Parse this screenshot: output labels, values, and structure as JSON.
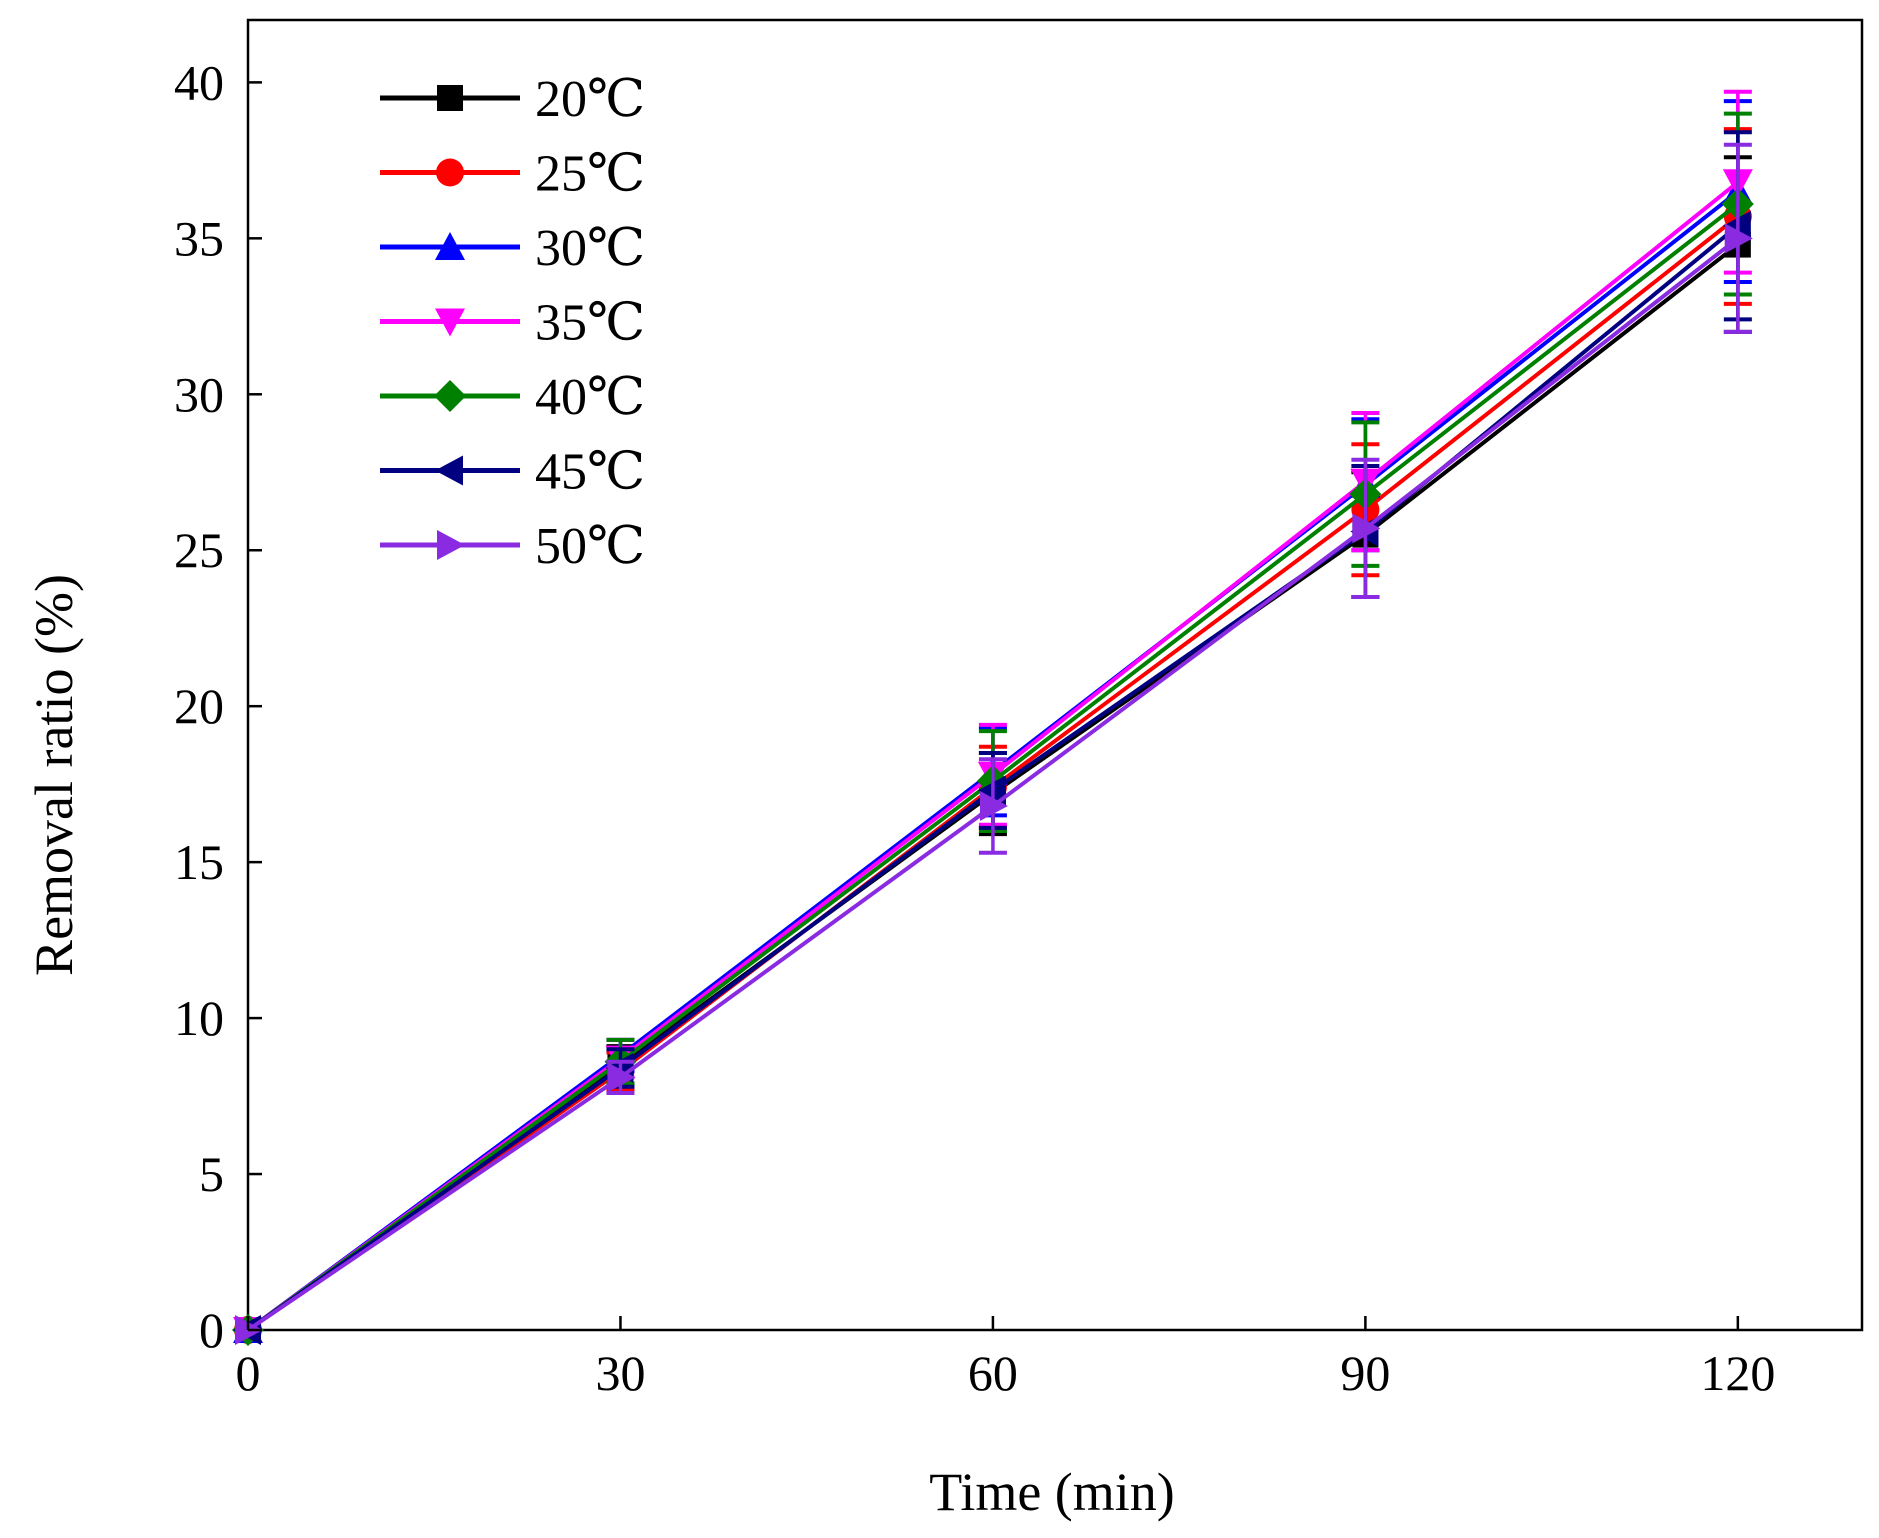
{
  "chart_data": {
    "type": "line",
    "title": "",
    "xlabel": "Time  (min)",
    "ylabel": "Removal ratio  (%)",
    "xlim": [
      0,
      130
    ],
    "ylim": [
      0,
      42
    ],
    "x": [
      0,
      30,
      60,
      90,
      120
    ],
    "xticks": [
      0,
      30,
      60,
      90,
      120
    ],
    "xtick_labels": [
      "0",
      "30",
      "60",
      "90",
      "120"
    ],
    "yticks": [
      0,
      5,
      10,
      15,
      20,
      25,
      30,
      35,
      40
    ],
    "ytick_labels": [
      "0",
      "5",
      "10",
      "15",
      "20",
      "25",
      "30",
      "35",
      "40"
    ],
    "grid": false,
    "legend_position": "top-left",
    "series": [
      {
        "name": "20℃",
        "color": "#000000",
        "marker": "square",
        "values": [
          0,
          8.5,
          17.2,
          25.5,
          34.8
        ],
        "errors": [
          0,
          0.6,
          1.3,
          2.0,
          2.8
        ]
      },
      {
        "name": "25℃",
        "color": "#ff0000",
        "marker": "circle",
        "values": [
          0,
          8.3,
          17.4,
          26.3,
          35.7
        ],
        "errors": [
          0,
          0.6,
          1.3,
          2.1,
          2.8
        ]
      },
      {
        "name": "30℃",
        "color": "#0000ff",
        "marker": "triangle-up",
        "values": [
          0,
          8.8,
          17.9,
          27.1,
          36.5
        ],
        "errors": [
          0,
          0.5,
          1.4,
          2.1,
          2.9
        ]
      },
      {
        "name": "35℃",
        "color": "#ff00ff",
        "marker": "triangle-down",
        "values": [
          0,
          8.7,
          17.8,
          27.2,
          36.8
        ],
        "errors": [
          0,
          0.6,
          1.6,
          2.2,
          2.9
        ]
      },
      {
        "name": "40℃",
        "color": "#008000",
        "marker": "diamond",
        "values": [
          0,
          8.6,
          17.6,
          26.8,
          36.1
        ],
        "errors": [
          0,
          0.7,
          1.6,
          2.3,
          2.9
        ]
      },
      {
        "name": "45℃",
        "color": "#000080",
        "marker": "triangle-left",
        "values": [
          0,
          8.4,
          17.3,
          25.6,
          35.4
        ],
        "errors": [
          0,
          0.6,
          1.2,
          2.1,
          3.0
        ]
      },
      {
        "name": "50℃",
        "color": "#8a2be2",
        "marker": "triangle-right",
        "values": [
          0,
          8.1,
          16.8,
          25.7,
          35.0
        ],
        "errors": [
          0,
          0.5,
          1.5,
          2.2,
          3.0
        ]
      }
    ]
  }
}
